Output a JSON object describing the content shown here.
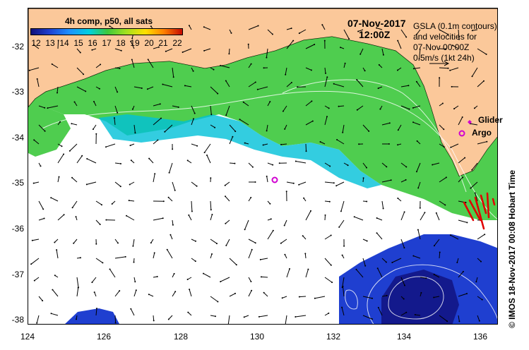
{
  "map": {
    "date_title": "07-Nov-2017",
    "time_title": "12:00Z",
    "colorbar": {
      "title": "4h comp, p50, all sats",
      "ticks": [
        "12",
        "13",
        "14",
        "15",
        "16",
        "17",
        "18",
        "19",
        "20",
        "21",
        "22"
      ]
    },
    "legend": {
      "line1": "GSLA (0.1m contours)",
      "line2": "and velocities for",
      "line3": "07-Nov 00:00Z",
      "line4": "0.5m/s (1kt 24h)"
    },
    "markers": {
      "glider_label": "Glider",
      "argo_label": "Argo"
    },
    "credit": "© IMOS 18-Nov-2017 00:08 Hobart Time",
    "x_ticks": [
      "124",
      "126",
      "128",
      "130",
      "132",
      "134",
      "136"
    ],
    "y_ticks": [
      "-32",
      "-33",
      "-34",
      "-35",
      "-36",
      "-37",
      "-38"
    ],
    "colors": {
      "land": "#fbc89a",
      "sea_cool": "#1f3fd0",
      "sea_warm": "#3cc83c",
      "glider": "#d000d0",
      "argo": "#d000d0",
      "glider_track": "#e00000"
    }
  }
}
